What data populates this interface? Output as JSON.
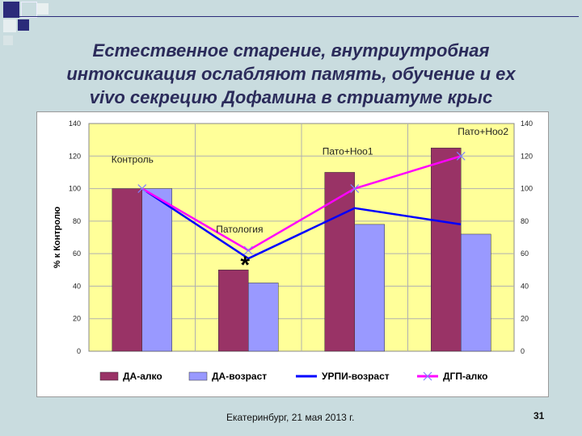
{
  "slide": {
    "title_lines": [
      "Естественное старение, внутриутробная",
      "интоксикация ослабляют память, обучение и ex",
      "vivo секрецию Дофамина в стриатуме крыс"
    ],
    "footer": "Екатеринбург, 21 мая 2013 г.",
    "page_number": "31"
  },
  "colors": {
    "background": "#c9dcdf",
    "plot_area": "#ffff99",
    "da_alko": "#993366",
    "da_vozrast": "#9999ff",
    "urpi_vozrast": "#0000ff",
    "dgp_alko": "#ff00ff",
    "decor_navy": "#2b2b7a"
  },
  "chart_data": {
    "type": "bar",
    "title": "",
    "ylabel": "% к Контролю",
    "ylim": [
      0,
      140
    ],
    "y_ticks": [
      "0",
      "20",
      "40",
      "60",
      "80",
      "100",
      "120",
      "140"
    ],
    "categories": [
      "Контроль",
      "Патология",
      "Пато+Ноо1",
      "Пато+Ноо2"
    ],
    "category_labels": [
      "Контроль",
      "Патология",
      "Пато+Ноо1",
      "Пато+Ноо2"
    ],
    "series": [
      {
        "name": "ДА-алко",
        "type": "bar",
        "values": [
          100,
          50,
          110,
          125
        ]
      },
      {
        "name": "ДА-возраст",
        "type": "bar",
        "values": [
          100,
          42,
          78,
          72
        ]
      },
      {
        "name": "УРПИ-возраст",
        "type": "line",
        "values": [
          100,
          57,
          88,
          78
        ]
      },
      {
        "name": "ДГП-алко",
        "type": "line",
        "values": [
          100,
          62,
          100,
          120
        ]
      }
    ],
    "annotations": [
      "*"
    ],
    "grid": true,
    "legend_position": "bottom"
  }
}
